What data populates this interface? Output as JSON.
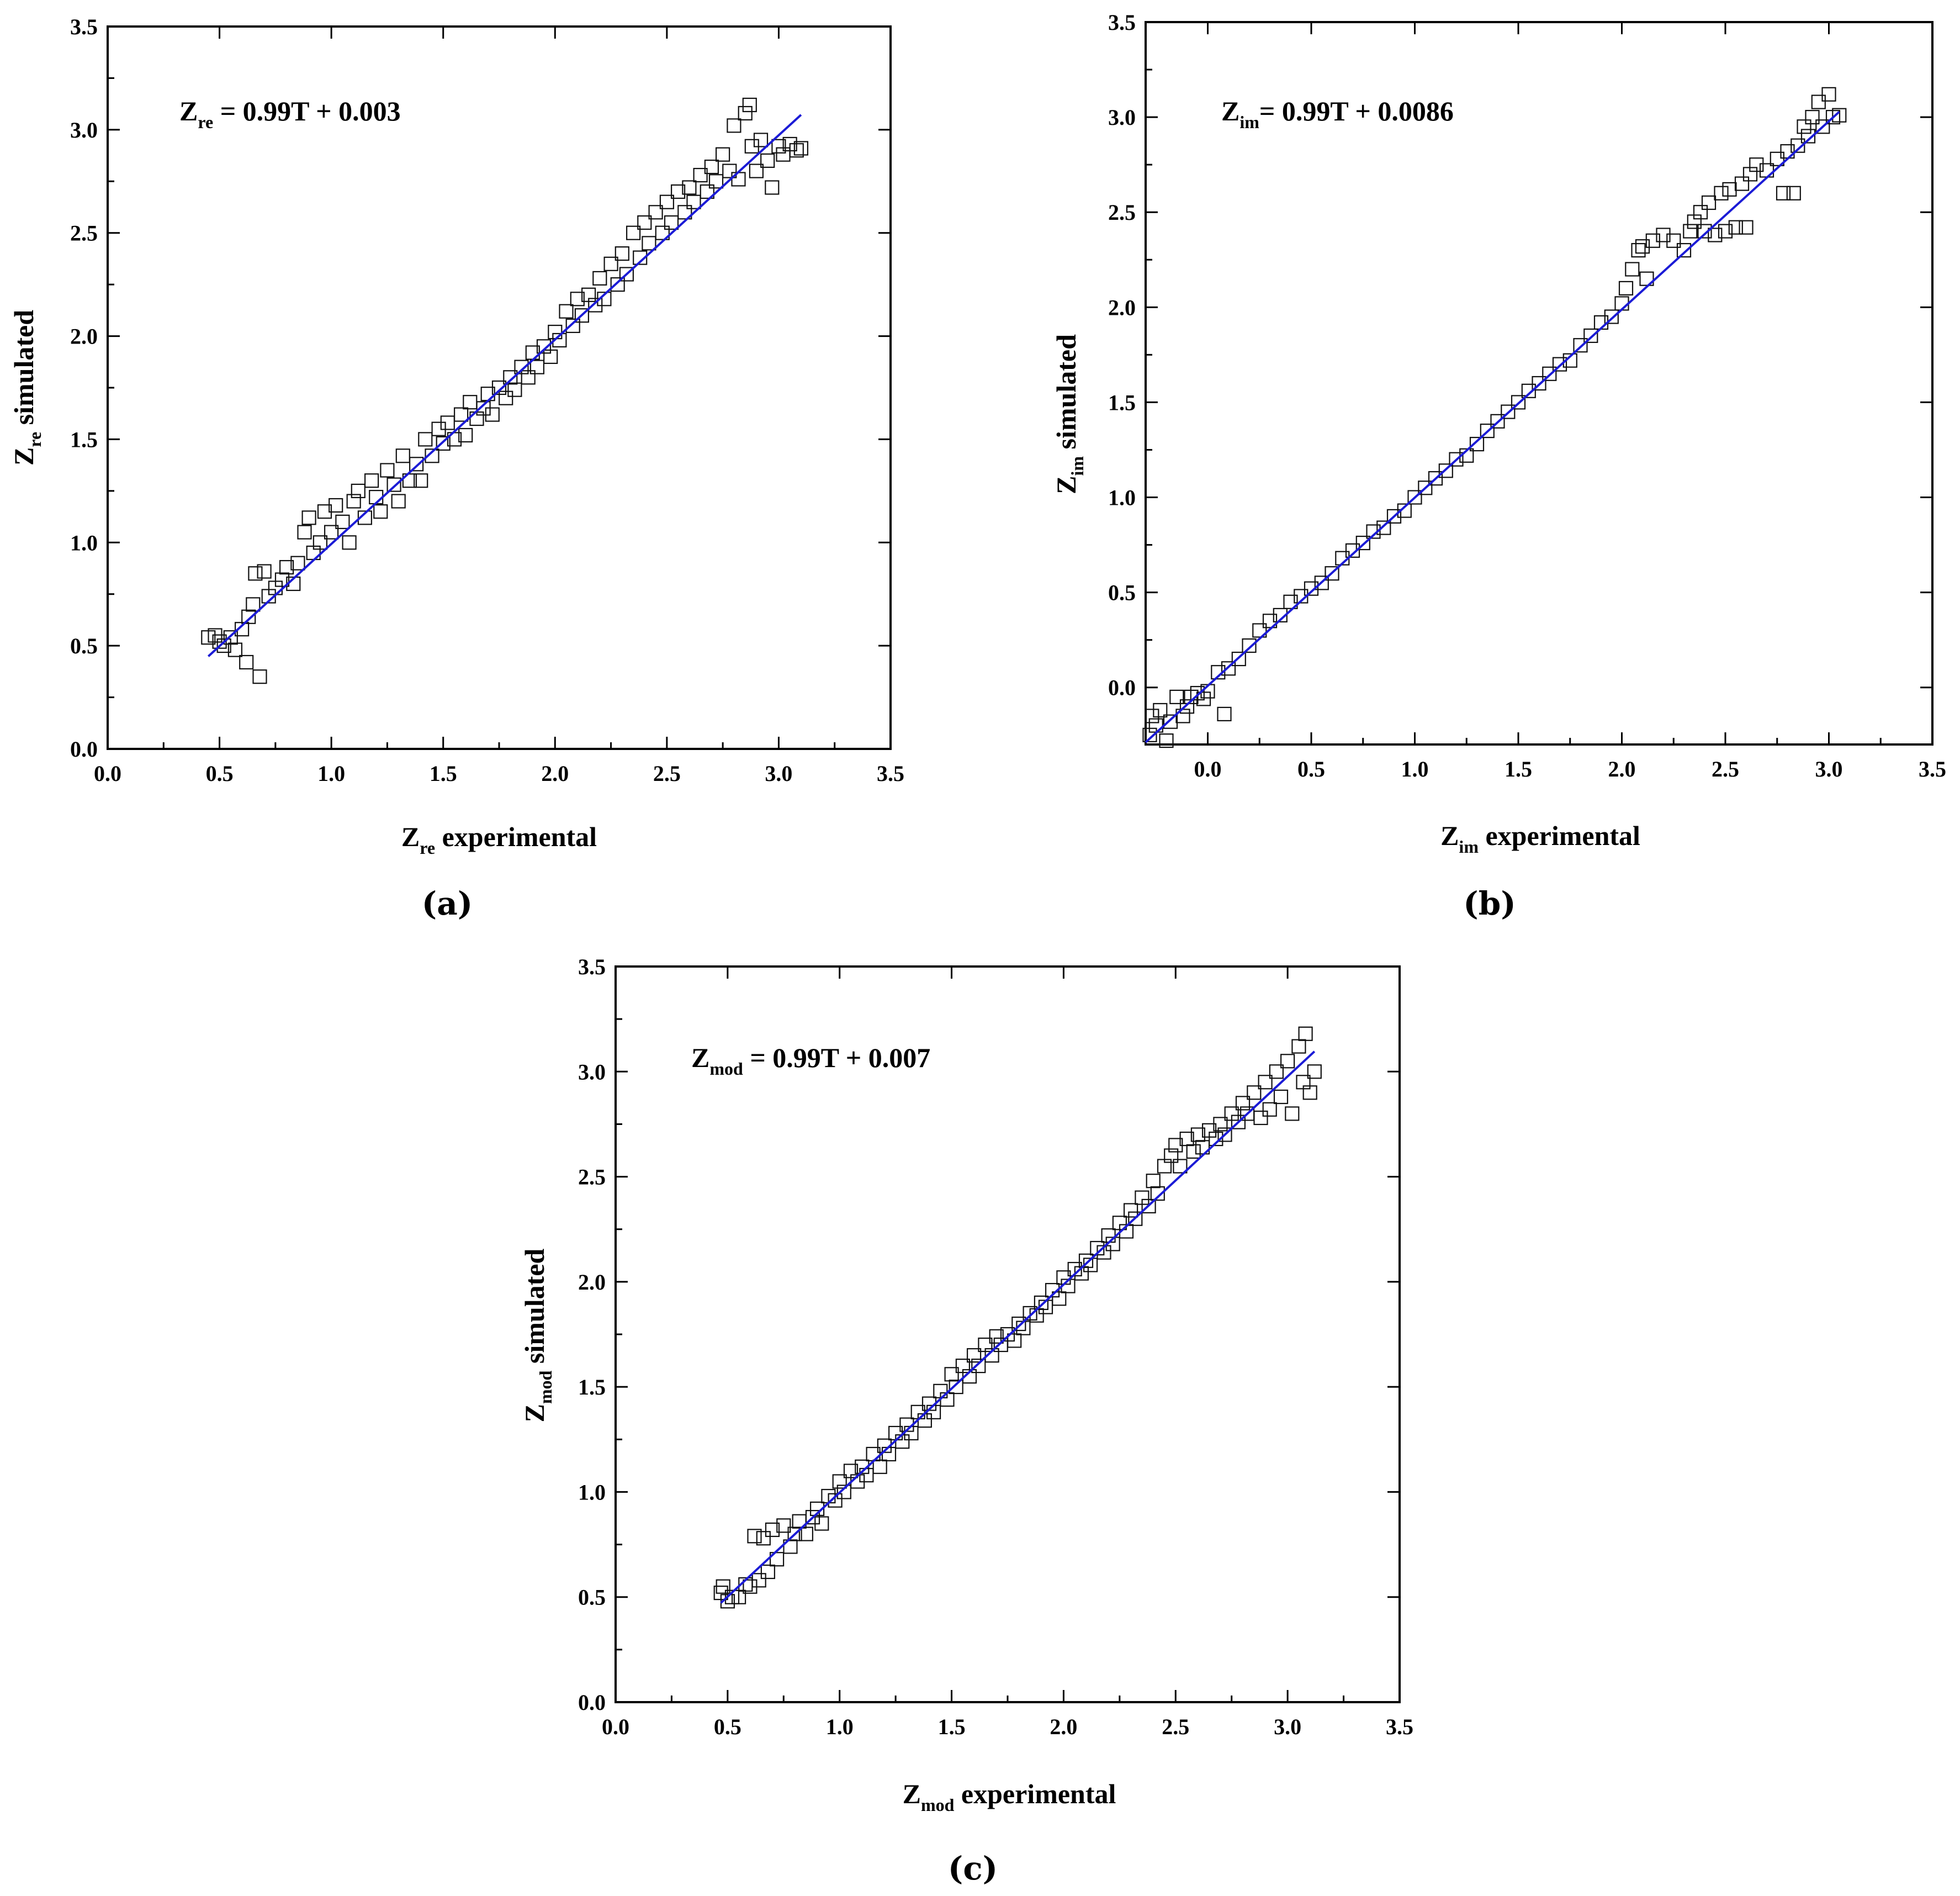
{
  "chart_data": [
    {
      "id": "a",
      "type": "scatter",
      "panel_label": "(a)",
      "equation": {
        "base": "Z",
        "sub": "re",
        "text": " = 0.99T + 0.003"
      },
      "xlabel": {
        "base": "Z",
        "sub": "re",
        "text": " experimental"
      },
      "ylabel": {
        "base": "Z",
        "sub": "re",
        "text": " simulated"
      },
      "xlim": [
        0,
        3.5
      ],
      "ylim": [
        0,
        3.5
      ],
      "xticks": [
        "0.0",
        "0.5",
        "1.0",
        "1.5",
        "2.0",
        "2.5",
        "3.0",
        "3.5"
      ],
      "yticks": [
        "0.0",
        "0.5",
        "1.0",
        "1.5",
        "2.0",
        "2.5",
        "3.0",
        "3.5"
      ],
      "grid": false,
      "marker": "open-square",
      "fit": {
        "slope": 0.99,
        "intercept": 0.003,
        "x_range": [
          0.45,
          3.1
        ],
        "color": "#1b1bd6"
      },
      "points": [
        [
          0.45,
          0.54
        ],
        [
          0.48,
          0.55
        ],
        [
          0.5,
          0.52
        ],
        [
          0.52,
          0.5
        ],
        [
          0.55,
          0.54
        ],
        [
          0.57,
          0.48
        ],
        [
          0.6,
          0.58
        ],
        [
          0.62,
          0.42
        ],
        [
          0.63,
          0.64
        ],
        [
          0.65,
          0.7
        ],
        [
          0.66,
          0.85
        ],
        [
          0.68,
          0.35
        ],
        [
          0.7,
          0.86
        ],
        [
          0.72,
          0.74
        ],
        [
          0.75,
          0.78
        ],
        [
          0.78,
          0.82
        ],
        [
          0.8,
          0.88
        ],
        [
          0.83,
          0.8
        ],
        [
          0.85,
          0.9
        ],
        [
          0.88,
          1.05
        ],
        [
          0.9,
          1.12
        ],
        [
          0.92,
          0.95
        ],
        [
          0.95,
          1.0
        ],
        [
          0.97,
          1.15
        ],
        [
          1.0,
          1.05
        ],
        [
          1.02,
          1.18
        ],
        [
          1.05,
          1.1
        ],
        [
          1.08,
          1.0
        ],
        [
          1.1,
          1.2
        ],
        [
          1.12,
          1.25
        ],
        [
          1.15,
          1.12
        ],
        [
          1.18,
          1.3
        ],
        [
          1.2,
          1.22
        ],
        [
          1.22,
          1.15
        ],
        [
          1.25,
          1.35
        ],
        [
          1.28,
          1.28
        ],
        [
          1.3,
          1.2
        ],
        [
          1.32,
          1.42
        ],
        [
          1.35,
          1.3
        ],
        [
          1.38,
          1.38
        ],
        [
          1.4,
          1.3
        ],
        [
          1.42,
          1.5
        ],
        [
          1.45,
          1.42
        ],
        [
          1.48,
          1.55
        ],
        [
          1.5,
          1.48
        ],
        [
          1.52,
          1.58
        ],
        [
          1.55,
          1.5
        ],
        [
          1.58,
          1.62
        ],
        [
          1.6,
          1.52
        ],
        [
          1.62,
          1.68
        ],
        [
          1.65,
          1.6
        ],
        [
          1.68,
          1.65
        ],
        [
          1.7,
          1.72
        ],
        [
          1.72,
          1.62
        ],
        [
          1.75,
          1.75
        ],
        [
          1.78,
          1.7
        ],
        [
          1.8,
          1.8
        ],
        [
          1.82,
          1.74
        ],
        [
          1.85,
          1.85
        ],
        [
          1.88,
          1.8
        ],
        [
          1.9,
          1.92
        ],
        [
          1.92,
          1.85
        ],
        [
          1.95,
          1.95
        ],
        [
          1.98,
          1.9
        ],
        [
          2.0,
          2.02
        ],
        [
          2.02,
          1.98
        ],
        [
          2.05,
          2.12
        ],
        [
          2.08,
          2.05
        ],
        [
          2.1,
          2.18
        ],
        [
          2.12,
          2.1
        ],
        [
          2.15,
          2.2
        ],
        [
          2.18,
          2.15
        ],
        [
          2.2,
          2.28
        ],
        [
          2.22,
          2.18
        ],
        [
          2.25,
          2.35
        ],
        [
          2.28,
          2.25
        ],
        [
          2.3,
          2.4
        ],
        [
          2.32,
          2.3
        ],
        [
          2.35,
          2.5
        ],
        [
          2.38,
          2.38
        ],
        [
          2.4,
          2.55
        ],
        [
          2.42,
          2.45
        ],
        [
          2.45,
          2.6
        ],
        [
          2.48,
          2.5
        ],
        [
          2.5,
          2.65
        ],
        [
          2.52,
          2.55
        ],
        [
          2.55,
          2.7
        ],
        [
          2.58,
          2.6
        ],
        [
          2.6,
          2.72
        ],
        [
          2.62,
          2.65
        ],
        [
          2.65,
          2.78
        ],
        [
          2.68,
          2.7
        ],
        [
          2.7,
          2.82
        ],
        [
          2.72,
          2.75
        ],
        [
          2.75,
          2.88
        ],
        [
          2.78,
          2.8
        ],
        [
          2.8,
          3.02
        ],
        [
          2.82,
          2.76
        ],
        [
          2.85,
          3.08
        ],
        [
          2.87,
          3.12
        ],
        [
          2.88,
          2.92
        ],
        [
          2.9,
          2.8
        ],
        [
          2.92,
          2.95
        ],
        [
          2.95,
          2.85
        ],
        [
          2.97,
          2.72
        ],
        [
          3.0,
          2.92
        ],
        [
          3.02,
          2.88
        ],
        [
          3.05,
          2.93
        ],
        [
          3.08,
          2.9
        ],
        [
          3.1,
          2.91
        ]
      ]
    },
    {
      "id": "b",
      "type": "scatter",
      "panel_label": "(b)",
      "equation": {
        "base": "Z",
        "sub": "im",
        "text": "= 0.99T + 0.0086"
      },
      "xlabel": {
        "base": "Z",
        "sub": "im",
        "text": " experimental"
      },
      "ylabel": {
        "base": "Z",
        "sub": "im",
        "text": " simulated"
      },
      "xlim": [
        -0.3,
        3.5
      ],
      "ylim": [
        -0.3,
        3.5
      ],
      "xticks": [
        "0.0",
        "0.5",
        "1.0",
        "1.5",
        "2.0",
        "2.5",
        "3.0",
        "3.5"
      ],
      "yticks": [
        "0.0",
        "0.5",
        "1.0",
        "1.5",
        "2.0",
        "2.5",
        "3.0",
        "3.5"
      ],
      "grid": false,
      "marker": "open-square",
      "fit": {
        "slope": 0.99,
        "intercept": 0.0086,
        "x_range": [
          -0.3,
          3.05
        ],
        "color": "#1b1bd6"
      },
      "points": [
        [
          -0.28,
          -0.25
        ],
        [
          -0.27,
          -0.15
        ],
        [
          -0.25,
          -0.2
        ],
        [
          -0.23,
          -0.12
        ],
        [
          -0.2,
          -0.28
        ],
        [
          -0.18,
          -0.18
        ],
        [
          -0.15,
          -0.05
        ],
        [
          -0.12,
          -0.15
        ],
        [
          -0.1,
          -0.1
        ],
        [
          -0.08,
          -0.05
        ],
        [
          -0.05,
          -0.03
        ],
        [
          -0.02,
          -0.06
        ],
        [
          0.0,
          -0.02
        ],
        [
          0.05,
          0.08
        ],
        [
          0.08,
          -0.14
        ],
        [
          0.1,
          0.1
        ],
        [
          0.15,
          0.15
        ],
        [
          0.2,
          0.22
        ],
        [
          0.25,
          0.3
        ],
        [
          0.3,
          0.35
        ],
        [
          0.35,
          0.38
        ],
        [
          0.4,
          0.45
        ],
        [
          0.45,
          0.48
        ],
        [
          0.5,
          0.52
        ],
        [
          0.55,
          0.55
        ],
        [
          0.6,
          0.6
        ],
        [
          0.65,
          0.68
        ],
        [
          0.7,
          0.72
        ],
        [
          0.75,
          0.76
        ],
        [
          0.8,
          0.82
        ],
        [
          0.85,
          0.84
        ],
        [
          0.9,
          0.9
        ],
        [
          0.95,
          0.93
        ],
        [
          1.0,
          1.0
        ],
        [
          1.05,
          1.05
        ],
        [
          1.1,
          1.1
        ],
        [
          1.15,
          1.14
        ],
        [
          1.2,
          1.2
        ],
        [
          1.25,
          1.22
        ],
        [
          1.3,
          1.28
        ],
        [
          1.35,
          1.35
        ],
        [
          1.4,
          1.4
        ],
        [
          1.45,
          1.45
        ],
        [
          1.5,
          1.5
        ],
        [
          1.55,
          1.56
        ],
        [
          1.6,
          1.6
        ],
        [
          1.65,
          1.65
        ],
        [
          1.7,
          1.7
        ],
        [
          1.75,
          1.72
        ],
        [
          1.8,
          1.8
        ],
        [
          1.85,
          1.85
        ],
        [
          1.9,
          1.92
        ],
        [
          1.95,
          1.95
        ],
        [
          2.0,
          2.02
        ],
        [
          2.02,
          2.1
        ],
        [
          2.05,
          2.2
        ],
        [
          2.08,
          2.3
        ],
        [
          2.1,
          2.32
        ],
        [
          2.12,
          2.15
        ],
        [
          2.15,
          2.35
        ],
        [
          2.2,
          2.38
        ],
        [
          2.25,
          2.35
        ],
        [
          2.3,
          2.3
        ],
        [
          2.33,
          2.4
        ],
        [
          2.35,
          2.45
        ],
        [
          2.38,
          2.5
        ],
        [
          2.4,
          2.4
        ],
        [
          2.42,
          2.55
        ],
        [
          2.45,
          2.38
        ],
        [
          2.48,
          2.6
        ],
        [
          2.5,
          2.4
        ],
        [
          2.52,
          2.62
        ],
        [
          2.55,
          2.42
        ],
        [
          2.58,
          2.65
        ],
        [
          2.6,
          2.42
        ],
        [
          2.62,
          2.7
        ],
        [
          2.65,
          2.75
        ],
        [
          2.7,
          2.72
        ],
        [
          2.75,
          2.78
        ],
        [
          2.78,
          2.6
        ],
        [
          2.8,
          2.82
        ],
        [
          2.83,
          2.6
        ],
        [
          2.85,
          2.85
        ],
        [
          2.88,
          2.95
        ],
        [
          2.9,
          2.9
        ],
        [
          2.92,
          3.0
        ],
        [
          2.95,
          3.08
        ],
        [
          2.97,
          2.95
        ],
        [
          3.0,
          3.12
        ],
        [
          3.02,
          3.0
        ],
        [
          3.05,
          3.01
        ]
      ]
    },
    {
      "id": "c",
      "type": "scatter",
      "panel_label": "(c)",
      "equation": {
        "base": "Z",
        "sub": "mod",
        "text": " = 0.99T + 0.007"
      },
      "xlabel": {
        "base": "Z",
        "sub": "mod",
        "text": " experimental"
      },
      "ylabel": {
        "base": "Z",
        "sub": "mod",
        "text": " simulated"
      },
      "xlim": [
        0,
        3.5
      ],
      "ylim": [
        0,
        3.5
      ],
      "xticks": [
        "0.0",
        "0.5",
        "1.0",
        "1.5",
        "2.0",
        "2.5",
        "3.0",
        "3.5"
      ],
      "yticks": [
        "0.0",
        "0.5",
        "1.0",
        "1.5",
        "2.0",
        "2.5",
        "3.0",
        "3.5"
      ],
      "grid": false,
      "marker": "open-square",
      "fit": {
        "slope": 0.99,
        "intercept": 0.007,
        "x_range": [
          0.47,
          3.12
        ],
        "color": "#1b1bd6"
      },
      "points": [
        [
          0.47,
          0.52
        ],
        [
          0.48,
          0.55
        ],
        [
          0.5,
          0.48
        ],
        [
          0.52,
          0.5
        ],
        [
          0.55,
          0.5
        ],
        [
          0.58,
          0.56
        ],
        [
          0.6,
          0.55
        ],
        [
          0.62,
          0.79
        ],
        [
          0.64,
          0.58
        ],
        [
          0.66,
          0.78
        ],
        [
          0.68,
          0.62
        ],
        [
          0.7,
          0.82
        ],
        [
          0.72,
          0.68
        ],
        [
          0.75,
          0.84
        ],
        [
          0.78,
          0.74
        ],
        [
          0.8,
          0.8
        ],
        [
          0.82,
          0.86
        ],
        [
          0.85,
          0.8
        ],
        [
          0.88,
          0.88
        ],
        [
          0.9,
          0.92
        ],
        [
          0.92,
          0.85
        ],
        [
          0.95,
          0.98
        ],
        [
          0.98,
          0.96
        ],
        [
          1.0,
          1.05
        ],
        [
          1.02,
          1.0
        ],
        [
          1.05,
          1.1
        ],
        [
          1.08,
          1.05
        ],
        [
          1.1,
          1.12
        ],
        [
          1.12,
          1.08
        ],
        [
          1.15,
          1.18
        ],
        [
          1.18,
          1.12
        ],
        [
          1.2,
          1.22
        ],
        [
          1.22,
          1.18
        ],
        [
          1.25,
          1.28
        ],
        [
          1.28,
          1.24
        ],
        [
          1.3,
          1.32
        ],
        [
          1.32,
          1.28
        ],
        [
          1.35,
          1.38
        ],
        [
          1.38,
          1.34
        ],
        [
          1.4,
          1.42
        ],
        [
          1.42,
          1.38
        ],
        [
          1.45,
          1.48
        ],
        [
          1.48,
          1.44
        ],
        [
          1.5,
          1.56
        ],
        [
          1.52,
          1.5
        ],
        [
          1.55,
          1.6
        ],
        [
          1.58,
          1.55
        ],
        [
          1.6,
          1.65
        ],
        [
          1.62,
          1.6
        ],
        [
          1.65,
          1.7
        ],
        [
          1.68,
          1.65
        ],
        [
          1.7,
          1.74
        ],
        [
          1.72,
          1.7
        ],
        [
          1.75,
          1.75
        ],
        [
          1.78,
          1.72
        ],
        [
          1.8,
          1.8
        ],
        [
          1.82,
          1.78
        ],
        [
          1.85,
          1.85
        ],
        [
          1.88,
          1.84
        ],
        [
          1.9,
          1.9
        ],
        [
          1.92,
          1.88
        ],
        [
          1.95,
          1.96
        ],
        [
          1.98,
          1.92
        ],
        [
          2.0,
          2.02
        ],
        [
          2.02,
          1.98
        ],
        [
          2.05,
          2.06
        ],
        [
          2.08,
          2.04
        ],
        [
          2.1,
          2.1
        ],
        [
          2.12,
          2.08
        ],
        [
          2.15,
          2.16
        ],
        [
          2.18,
          2.14
        ],
        [
          2.2,
          2.22
        ],
        [
          2.22,
          2.18
        ],
        [
          2.25,
          2.28
        ],
        [
          2.28,
          2.24
        ],
        [
          2.3,
          2.34
        ],
        [
          2.32,
          2.3
        ],
        [
          2.35,
          2.4
        ],
        [
          2.38,
          2.36
        ],
        [
          2.4,
          2.48
        ],
        [
          2.42,
          2.42
        ],
        [
          2.45,
          2.55
        ],
        [
          2.48,
          2.6
        ],
        [
          2.5,
          2.65
        ],
        [
          2.52,
          2.55
        ],
        [
          2.55,
          2.68
        ],
        [
          2.58,
          2.62
        ],
        [
          2.6,
          2.7
        ],
        [
          2.62,
          2.64
        ],
        [
          2.65,
          2.72
        ],
        [
          2.68,
          2.68
        ],
        [
          2.7,
          2.75
        ],
        [
          2.72,
          2.7
        ],
        [
          2.75,
          2.8
        ],
        [
          2.78,
          2.76
        ],
        [
          2.8,
          2.85
        ],
        [
          2.82,
          2.8
        ],
        [
          2.85,
          2.9
        ],
        [
          2.88,
          2.78
        ],
        [
          2.9,
          2.95
        ],
        [
          2.92,
          2.82
        ],
        [
          2.95,
          3.0
        ],
        [
          2.97,
          2.88
        ],
        [
          3.0,
          3.05
        ],
        [
          3.02,
          2.8
        ],
        [
          3.05,
          3.12
        ],
        [
          3.07,
          2.95
        ],
        [
          3.08,
          3.18
        ],
        [
          3.1,
          2.9
        ],
        [
          3.12,
          3.0
        ]
      ]
    }
  ]
}
